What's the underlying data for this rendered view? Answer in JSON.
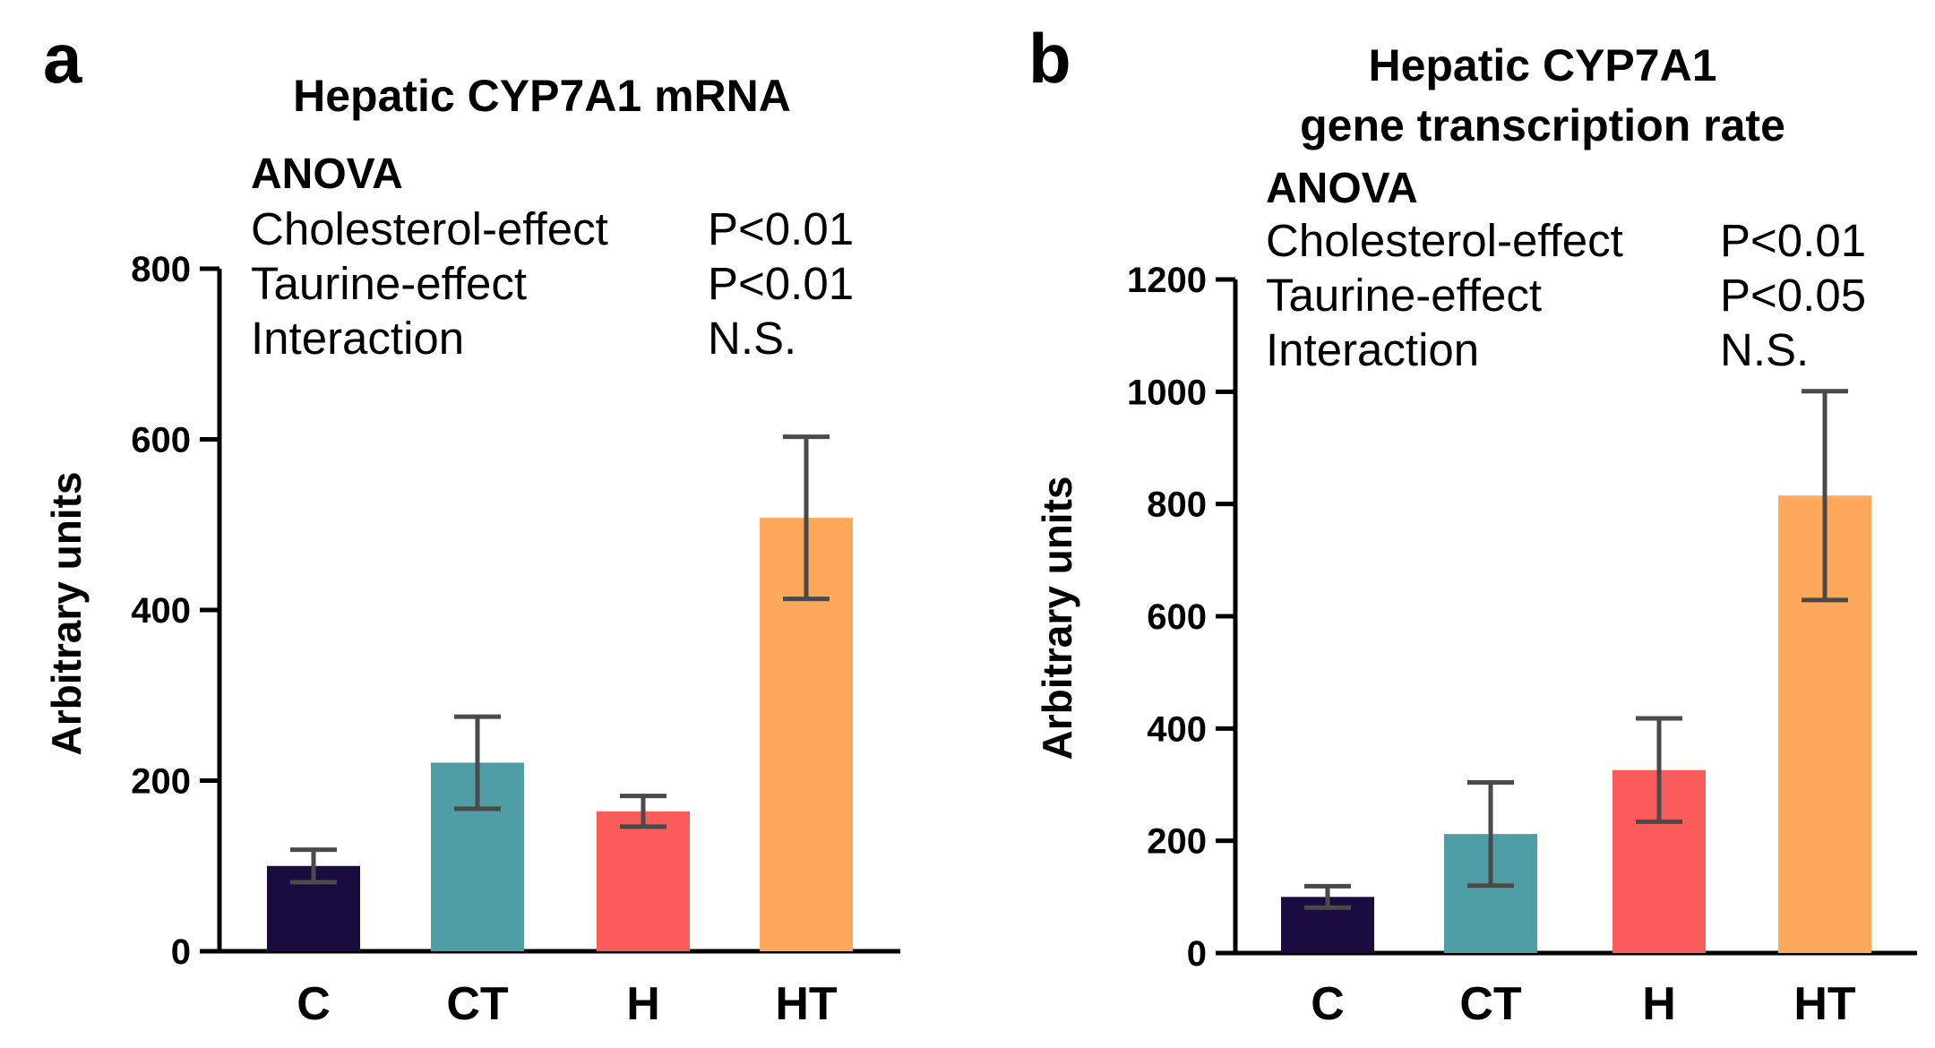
{
  "chart_data": [
    {
      "panel": "a",
      "type": "bar",
      "title": "Hepatic CYP7A1 mRNA",
      "ylabel": "Arbitrary units",
      "xlabel": "",
      "ylim": [
        0,
        800
      ],
      "yticks": [
        0,
        200,
        400,
        600,
        800
      ],
      "categories": [
        "C",
        "CT",
        "H",
        "HT"
      ],
      "values": [
        100,
        221,
        164,
        508
      ],
      "errors": [
        19,
        54,
        18,
        95
      ],
      "colors": [
        "#1a0c3f",
        "#4f9ea6",
        "#fa5c5c",
        "#fda85a"
      ],
      "anova": {
        "heading": "ANOVA",
        "rows": [
          {
            "label": "Cholesterol-effect",
            "value": "P<0.01"
          },
          {
            "label": "Taurine-effect",
            "value": "P<0.01"
          },
          {
            "label": "Interaction",
            "value": "N.S."
          }
        ]
      }
    },
    {
      "panel": "b",
      "type": "bar",
      "title": "Hepatic CYP7A1 gene transcription rate",
      "title_lines": [
        "Hepatic CYP7A1",
        "gene transcription rate"
      ],
      "ylabel": "Arbitrary units",
      "xlabel": "",
      "ylim": [
        0,
        1200
      ],
      "yticks": [
        0,
        200,
        400,
        600,
        800,
        1000,
        1200
      ],
      "categories": [
        "C",
        "CT",
        "H",
        "HT"
      ],
      "values": [
        100,
        212,
        326,
        815
      ],
      "errors": [
        19,
        92,
        92,
        186
      ],
      "colors": [
        "#1a0c3f",
        "#4f9ea6",
        "#fa5c5c",
        "#fda85a"
      ],
      "anova": {
        "heading": "ANOVA",
        "rows": [
          {
            "label": "Cholesterol-effect",
            "value": "P<0.01"
          },
          {
            "label": "Taurine-effect",
            "value": "P<0.05"
          },
          {
            "label": "Interaction",
            "value": "N.S."
          }
        ]
      }
    }
  ]
}
